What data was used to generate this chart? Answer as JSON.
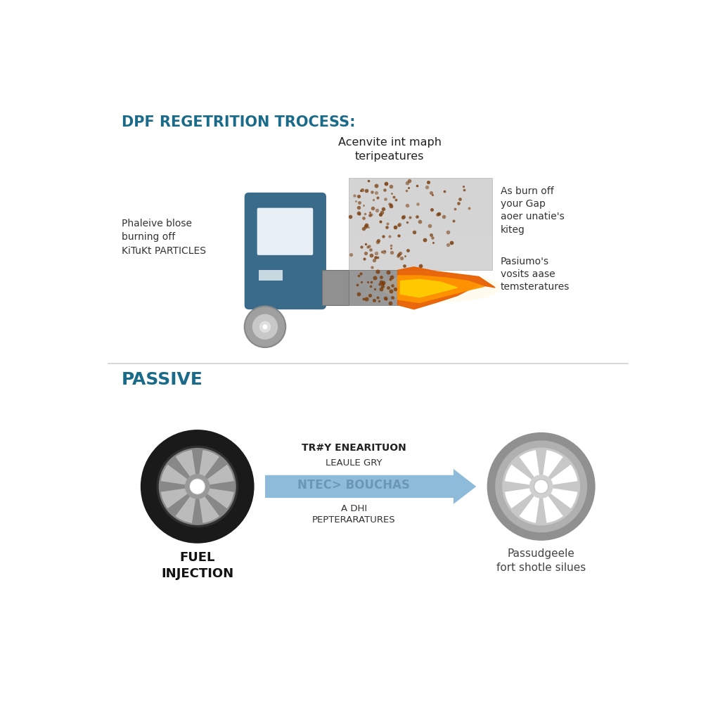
{
  "title1": "DPF REGETRITION TROCESS:",
  "title2": "PASSIVE",
  "title_color": "#1a6b8a",
  "background_color": "#ffffff",
  "top_left_label": "Phaleive blose\nburning off\nKiTuKt PARTICLES",
  "top_center_label": "Acenvite int maph\nteripeatures",
  "top_right_upper_label": "As burn off\nyour Gap\naoer unatie's\nkiteg",
  "top_right_lower_label": "Pasiumo's\nvosits aase\ntemsteratures",
  "truck_body_color": "#3a6b8a",
  "truck_wheel_color": "#a8a8a8",
  "exhaust_gray_color": "#c8c8c8",
  "soot_color": "#7B3F10",
  "bottom_left_label": "FUEL\nINJECTION",
  "bottom_right_label": "Passudgeele\nfort shotle silues",
  "arrow_text1": "TR#Y ENEARITUON",
  "arrow_text2": "LEAULE GRY",
  "arrow_text3": "NTEC> BOUCHAS",
  "arrow_text4": "A DHI\nPEPTERARATURES",
  "arrow_color": "#7ab0d4",
  "tire_dark_color": "#222222",
  "dpf_gray_color": "#aaaaaa",
  "divider_color": "#d0d0d0"
}
